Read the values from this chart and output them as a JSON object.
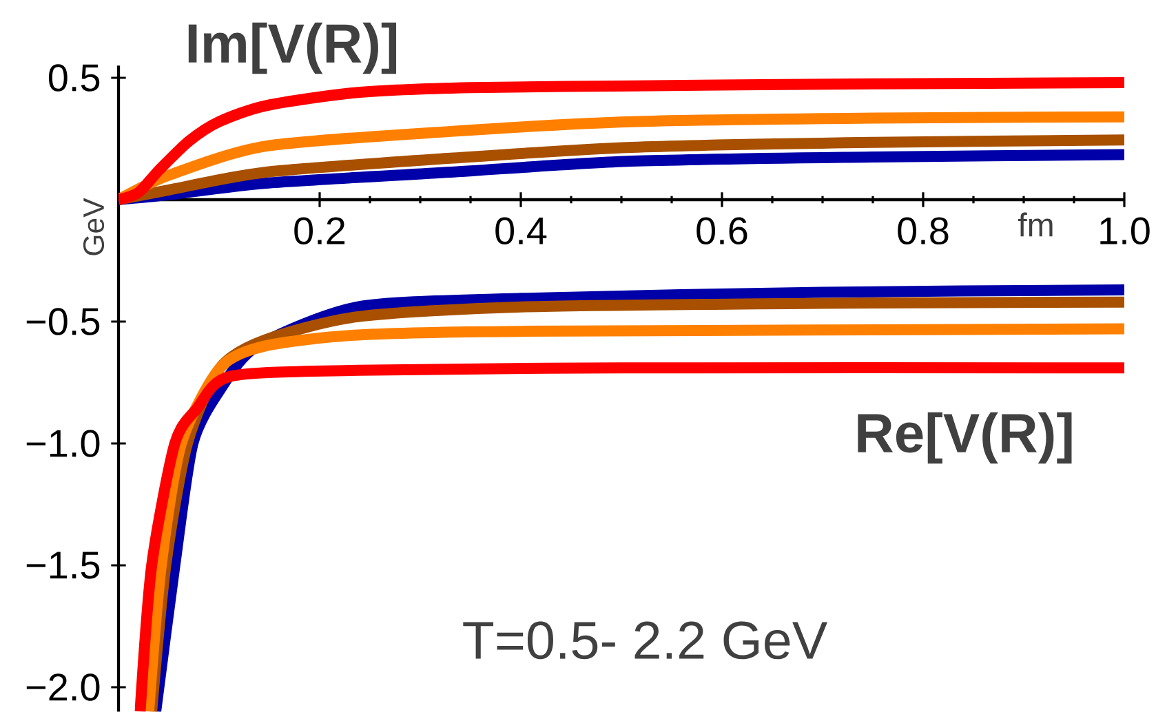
{
  "chart_data": {
    "type": "line",
    "xlabel": "fm",
    "ylabel": "GeV",
    "annotations": [
      "Im[V(R)]",
      "Re[V(R)]",
      "T=0.5- 2.2 GeV"
    ],
    "xlim": [
      0,
      1.0
    ],
    "ylim": [
      -2.1,
      0.55
    ],
    "xticks": [
      0.2,
      0.4,
      0.6,
      0.8,
      {
        "value": 1.0,
        "label": "1.0"
      }
    ],
    "yticks": [
      0.5,
      {
        "value": -0.5,
        "label": "−0.5"
      },
      {
        "value": -1.0,
        "label": "−1.0"
      },
      {
        "value": -1.5,
        "label": "−1.5"
      },
      {
        "value": -2.0,
        "label": "−2.0"
      }
    ],
    "grid": false,
    "marker": "none",
    "line_style": "solid",
    "series": [
      {
        "color": "#0000a8",
        "x": [
          0,
          0.05,
          0.147,
          0.33,
          0.51,
          0.75,
          1.0
        ],
        "values": [
          0,
          0.02,
          0.068,
          0.113,
          0.158,
          0.175,
          0.185
        ]
      },
      {
        "color": "#a85000",
        "x": [
          0,
          0.05,
          0.147,
          0.33,
          0.51,
          0.75,
          1.0
        ],
        "values": [
          0,
          0.04,
          0.113,
          0.17,
          0.215,
          0.235,
          0.245
        ]
      },
      {
        "color": "#ff8000",
        "x": [
          0,
          0.05,
          0.147,
          0.33,
          0.51,
          0.75,
          1.0
        ],
        "values": [
          0,
          0.1,
          0.22,
          0.28,
          0.32,
          0.335,
          0.34
        ]
      },
      {
        "color": "#ff0000",
        "x": [
          0,
          0.02,
          0.04,
          0.07,
          0.1,
          0.147,
          0.238,
          0.35,
          0.512,
          0.75,
          1.0
        ],
        "values": [
          0,
          0.03,
          0.12,
          0.24,
          0.32,
          0.386,
          0.44,
          0.46,
          0.467,
          0.475,
          0.48
        ]
      },
      {
        "color": "#0000a8",
        "x": [
          0.037,
          0.056,
          0.074,
          0.101,
          0.138,
          0.238,
          0.4,
          0.7,
          1.0
        ],
        "values": [
          -2.1,
          -1.5,
          -1.0,
          -0.78,
          -0.6,
          -0.44,
          -0.405,
          -0.38,
          -0.37
        ]
      },
      {
        "color": "#a85000",
        "x": [
          0.033,
          0.047,
          0.0685,
          0.101,
          0.146,
          0.238,
          0.4,
          0.7,
          1.0
        ],
        "values": [
          -2.1,
          -1.5,
          -1.0,
          -0.69,
          -0.575,
          -0.48,
          -0.44,
          -0.425,
          -0.42
        ]
      },
      {
        "color": "#ff8000",
        "x": [
          0.03,
          0.0425,
          0.0625,
          0.101,
          0.146,
          0.238,
          0.4,
          1.0
        ],
        "values": [
          -2.1,
          -1.5,
          -1.0,
          -0.69,
          -0.6,
          -0.555,
          -0.54,
          -0.53
        ]
      },
      {
        "color": "#ff0000",
        "x": [
          0.0215,
          0.033,
          0.056,
          0.078,
          0.111,
          0.238,
          0.5,
          1.0
        ],
        "values": [
          -2.1,
          -1.5,
          -1.0,
          -0.857,
          -0.725,
          -0.7,
          -0.69,
          -0.69
        ]
      }
    ]
  }
}
